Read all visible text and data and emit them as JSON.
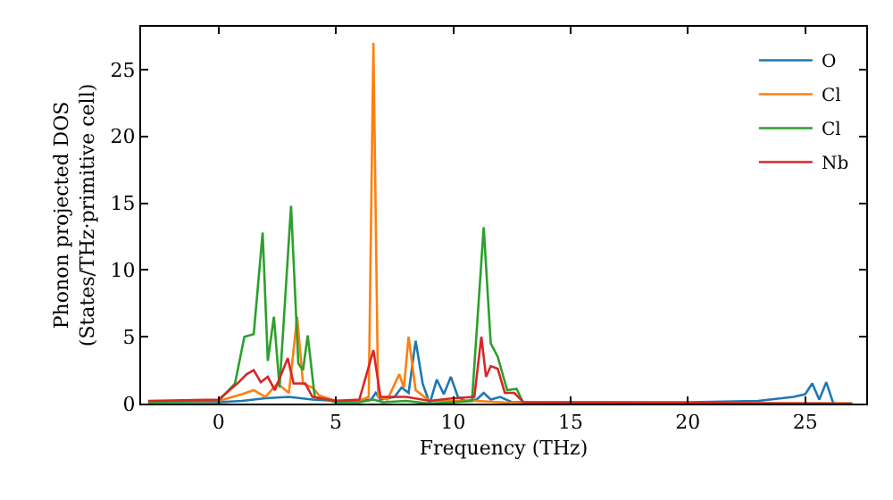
{
  "chart_data": {
    "type": "line",
    "xlabel": "Frequency (THz)",
    "ylabel": "Phonon projected DOS\n(States/THz·primitive cell)",
    "xlim": [
      -3.3,
      27.6
    ],
    "ylim": [
      0,
      28.2
    ],
    "xticks": [
      0,
      5,
      10,
      15,
      20,
      25
    ],
    "yticks": [
      0,
      5,
      10,
      15,
      20,
      25
    ],
    "grid": false,
    "legend": "top right",
    "marker": "none",
    "line_style": "solid",
    "series": [
      {
        "name": "O",
        "color": "#1f77b4",
        "x": [
          -3,
          0,
          1,
          2,
          3,
          4,
          5,
          6,
          6.5,
          6.7,
          6.9,
          7.5,
          7.8,
          8.1,
          8.4,
          8.7,
          9,
          9.3,
          9.6,
          9.9,
          10.2,
          10.5,
          11,
          11.3,
          11.6,
          12,
          12.5,
          13,
          20,
          23,
          24.5,
          25,
          25.3,
          25.6,
          25.9,
          26.2
        ],
        "values": [
          0.1,
          0.1,
          0.2,
          0.4,
          0.5,
          0.3,
          0.2,
          0.2,
          0.3,
          0.8,
          0.3,
          0.5,
          1.2,
          0.8,
          4.7,
          1.5,
          0,
          1.8,
          0.7,
          2,
          0.5,
          0.2,
          0.3,
          0.8,
          0.3,
          0.5,
          0.1,
          0.1,
          0.1,
          0.2,
          0.5,
          0.7,
          1.5,
          0.3,
          1.6,
          0
        ]
      },
      {
        "name": "Cl",
        "color": "#ff7f0e",
        "x": [
          -3,
          0,
          1,
          1.5,
          2,
          2.5,
          3,
          3.35,
          3.6,
          4,
          4.3,
          5,
          6,
          6.4,
          6.6,
          6.8,
          7.2,
          7.7,
          7.9,
          8.1,
          8.4,
          9,
          10,
          11,
          12,
          13,
          27
        ],
        "values": [
          0.1,
          0.2,
          0.7,
          1,
          0.5,
          1.5,
          0.8,
          6.5,
          1.5,
          1.2,
          0.6,
          0.2,
          0.2,
          0.5,
          27,
          0.5,
          0.3,
          2.2,
          1.2,
          5,
          1,
          0.2,
          0.2,
          0.2,
          0.1,
          0,
          0
        ]
      },
      {
        "name": "Cl",
        "color": "#2ca02c",
        "x": [
          -3,
          0,
          0.7,
          1.1,
          1.5,
          1.88,
          2.1,
          2.36,
          2.6,
          3.09,
          3.4,
          3.6,
          3.8,
          4.1,
          5,
          6,
          6.6,
          7,
          8,
          9,
          10,
          10.8,
          11.3,
          11.6,
          11.9,
          12.3,
          12.7,
          13,
          27
        ],
        "values": [
          0.1,
          0.2,
          1.5,
          5,
          5.2,
          12.8,
          3.2,
          6.5,
          1.2,
          14.8,
          3,
          2.5,
          5.1,
          0.5,
          0.1,
          0.1,
          0.3,
          0.1,
          0.2,
          0,
          0.1,
          0.2,
          13.2,
          4.5,
          3.5,
          1,
          1.1,
          0,
          0
        ]
      },
      {
        "name": "Nb",
        "color": "#d62728",
        "x": [
          -3,
          0,
          0.8,
          1.2,
          1.5,
          1.8,
          2.1,
          2.4,
          2.95,
          3.2,
          3.7,
          4,
          5,
          6,
          6.6,
          6.9,
          8,
          9,
          10,
          10.9,
          11.2,
          11.4,
          11.6,
          11.9,
          12.2,
          12.6,
          13,
          27
        ],
        "values": [
          0.2,
          0.3,
          1.5,
          2.2,
          2.5,
          1.6,
          2,
          1,
          3.4,
          1.5,
          1.5,
          0.5,
          0.2,
          0.3,
          4,
          0.5,
          0.5,
          0.2,
          0.4,
          0.5,
          5,
          2,
          2.8,
          2.6,
          0.8,
          0.8,
          0.1,
          0
        ]
      }
    ]
  }
}
